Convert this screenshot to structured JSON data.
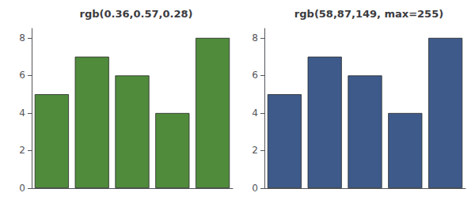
{
  "chart_data": [
    {
      "type": "bar",
      "title": "rgb(0.36,0.57,0.28)",
      "categories": [
        null,
        null,
        null,
        null,
        null
      ],
      "values": [
        5,
        7,
        6,
        4,
        8
      ],
      "color": "#4f8b3b",
      "ylim": [
        0,
        8.5
      ],
      "yticks": [
        0,
        2,
        4,
        6,
        8
      ],
      "grid": false,
      "tick_labels": "y"
    },
    {
      "type": "bar",
      "title": "rgb(58,87,149, max=255)",
      "categories": [
        null,
        null,
        null,
        null,
        null
      ],
      "values": [
        5,
        7,
        6,
        4,
        8
      ],
      "color": "#3d5a8a",
      "ylim": [
        0,
        8.5
      ],
      "yticks": [
        0,
        2,
        4,
        6,
        8
      ],
      "grid": false,
      "tick_labels": "y"
    }
  ]
}
